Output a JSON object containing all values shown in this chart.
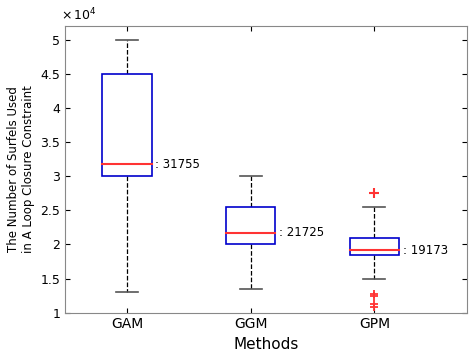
{
  "categories": [
    "GAM",
    "GGM",
    "GPM"
  ],
  "xlabel": "Methods",
  "ylabel": "The Number of Surfels Used\nin A Loop Closure Constraint",
  "ylim": [
    10000,
    52000
  ],
  "yticks": [
    10000,
    15000,
    20000,
    25000,
    30000,
    35000,
    40000,
    45000,
    50000
  ],
  "ytick_labels": [
    "1",
    "1.5",
    "2",
    "2.5",
    "3",
    "3.5",
    "4",
    "4.5",
    "5"
  ],
  "box_data": {
    "GAM": {
      "median": 31755,
      "q1": 30000,
      "q3": 45000,
      "whisker_low": 13000,
      "whisker_high": 50000,
      "outliers_high": [],
      "outliers_low": []
    },
    "GGM": {
      "median": 21725,
      "q1": 20000,
      "q3": 25500,
      "whisker_low": 13500,
      "whisker_high": 30000,
      "outliers_high": [],
      "outliers_low": []
    },
    "GPM": {
      "median": 19173,
      "q1": 18500,
      "q3": 21000,
      "whisker_low": 15000,
      "whisker_high": 25500,
      "outliers_high": [
        27500
      ],
      "outliers_low": [
        12800,
        12400,
        11200,
        10800
      ]
    }
  },
  "median_labels": {
    "GAM": ": 31755",
    "GGM": ": 21725",
    "GPM": ": 19173"
  },
  "box_color": "#0000CC",
  "median_color": "#FF3333",
  "whisker_color": "#000000",
  "cap_color": "#555555",
  "outlier_color": "#FF3333",
  "background_color": "#FFFFFF",
  "xlabel_color": "#000000",
  "ylabel_color": "#000000",
  "figsize": [
    4.74,
    3.59
  ],
  "dpi": 100
}
